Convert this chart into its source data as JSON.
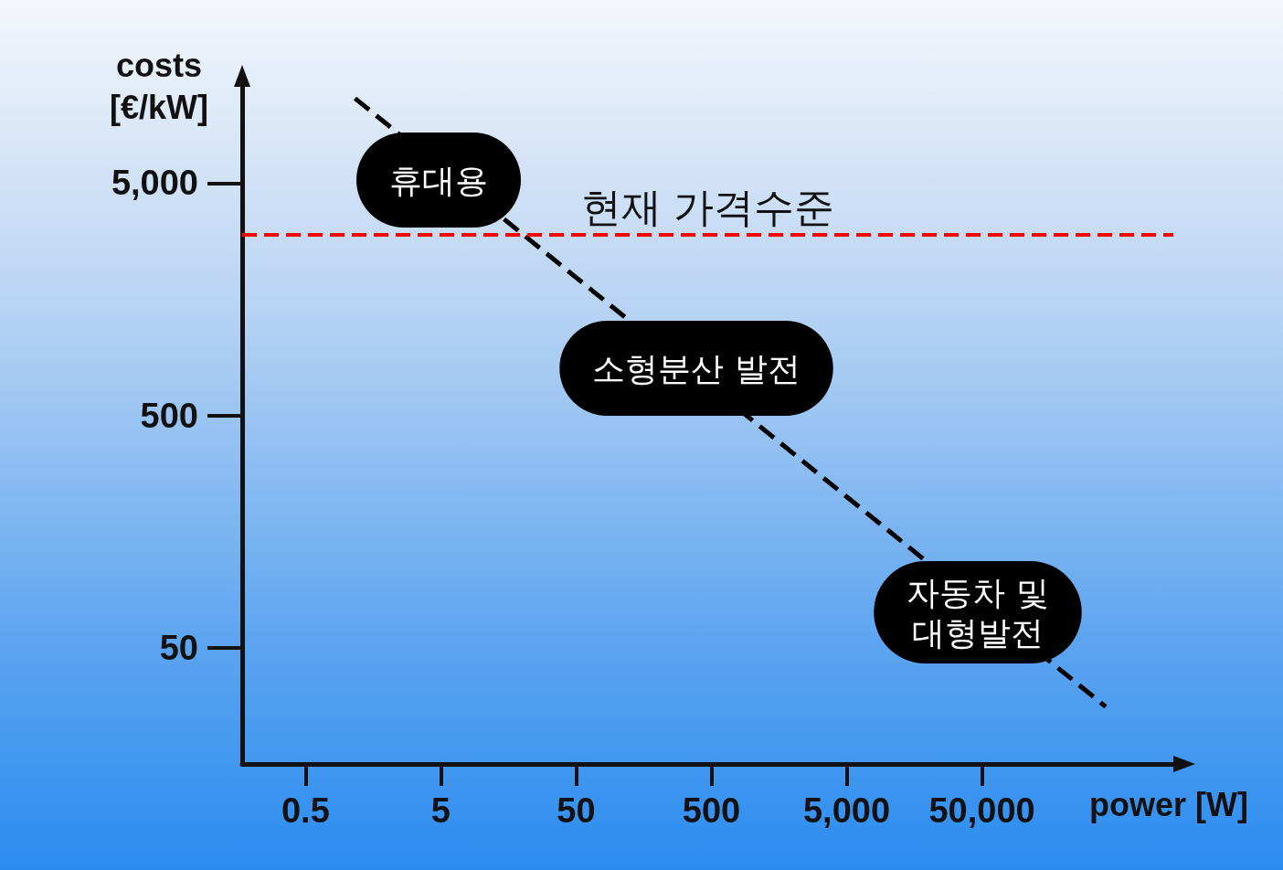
{
  "chart_data": {
    "type": "line",
    "xlabel": "power [W]",
    "ylabel": "costs\n[€/kW]",
    "log": "xy",
    "x": [
      1.16,
      411000
    ],
    "values": [
      11600,
      27.9
    ],
    "color": "#000000",
    "marker": "none",
    "line_style": "dashed",
    "xlim": [
      0.17,
      1300000
    ],
    "ylim": [
      15.8,
      13000
    ],
    "xticks": [
      0.5,
      5,
      50,
      500,
      {
        "value": 5000,
        "label": "5,000"
      },
      {
        "value": 50000,
        "label": "50,000"
      }
    ],
    "yticks": [
      50,
      500,
      {
        "value": 5000,
        "label": "5,000"
      }
    ],
    "grid": false,
    "ref_lines": [
      {
        "axis": "y",
        "value": 3000,
        "label": "현재 가격수준",
        "color": "#ff0000",
        "line_style": "dashed"
      }
    ],
    "annotations": [
      "휴대용",
      "소형분산 발전",
      "자동차 및\n대형발전"
    ]
  }
}
